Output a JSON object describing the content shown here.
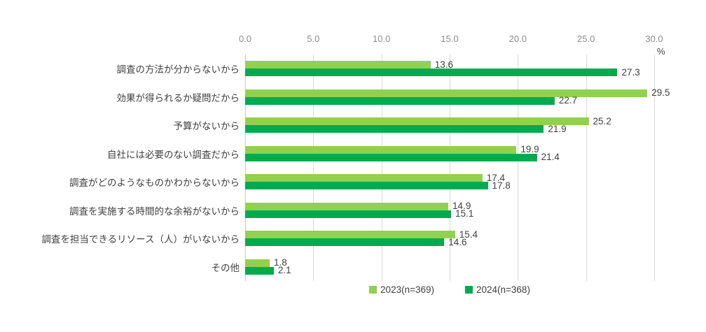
{
  "figure": {
    "background": "#FFFFFF"
  },
  "chart_data": {
    "type": "bar",
    "orientation": "horizontal",
    "title": "",
    "xlabel": "%",
    "ylabel": "",
    "xlim": [
      0,
      30
    ],
    "xtick_labels": [
      "0.0",
      "5.0",
      "10.0",
      "15.0",
      "20.0",
      "25.0",
      "30.0"
    ],
    "xtick_values": [
      0,
      5,
      10,
      15,
      20,
      25,
      30
    ],
    "grid": "vertical",
    "legend_position": "bottom",
    "categories": [
      "調査の方法が分からないから",
      "効果が得られるか疑問だから",
      "予算がないから",
      "自社には必要のない調査だから",
      "調査がどのようなものかわからないから",
      "調査を実施する時間的な余裕がないから",
      "調査を担当できるリソース（人）がいないから",
      "その他"
    ],
    "series": [
      {
        "year": "2023",
        "name": "2023(n=369)",
        "color": "#92D050",
        "values": [
          13.6,
          29.5,
          25.2,
          19.9,
          17.4,
          14.9,
          15.4,
          1.8
        ]
      },
      {
        "year": "2024",
        "name": "2024(n=368)",
        "color": "#00AB4F",
        "values": [
          27.3,
          22.7,
          21.9,
          21.4,
          17.8,
          15.1,
          14.6,
          2.1
        ]
      }
    ],
    "colors": {
      "gridline": "#D9D9D9",
      "axis_line": "#C6C6C6",
      "tick_label": "#8C8C8C",
      "data_label": "#404040",
      "category_label": "#404040"
    }
  }
}
